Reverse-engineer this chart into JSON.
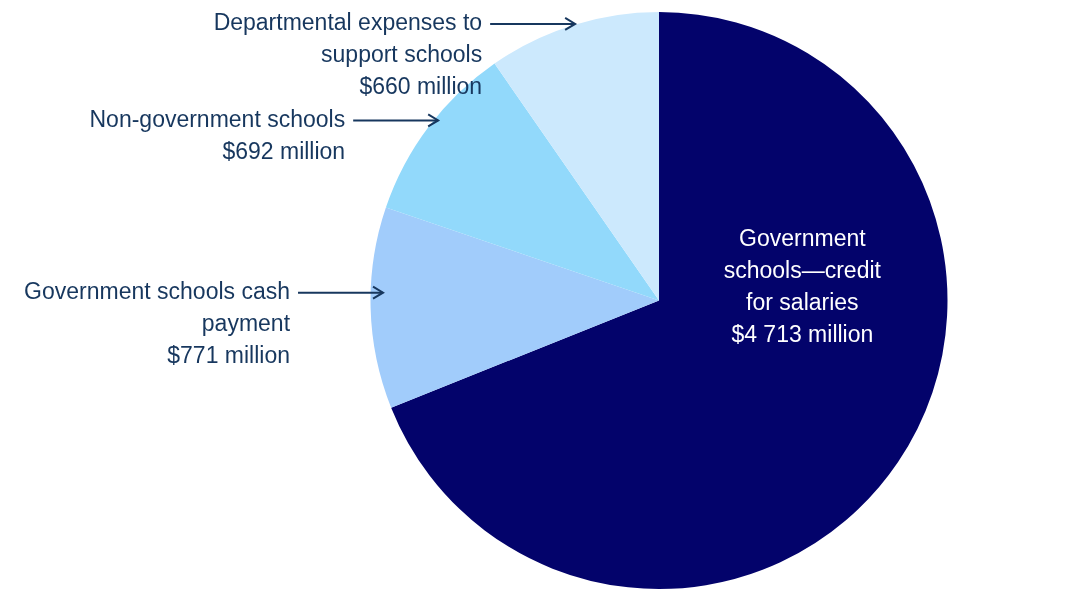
{
  "chart_data": {
    "type": "pie",
    "categories": [
      "Government schools—credit for salaries",
      "Government schools cash payment",
      "Non-government schools",
      "Departmental expenses to support schools"
    ],
    "values": [
      4713,
      771,
      692,
      660
    ],
    "value_labels": [
      "$4 713 million",
      "$771 million",
      "$692 million",
      "$660 million"
    ],
    "colors": [
      "#03036b",
      "#a1ccfb",
      "#92d9fb",
      "#cce9fd"
    ],
    "legend": false
  }
}
